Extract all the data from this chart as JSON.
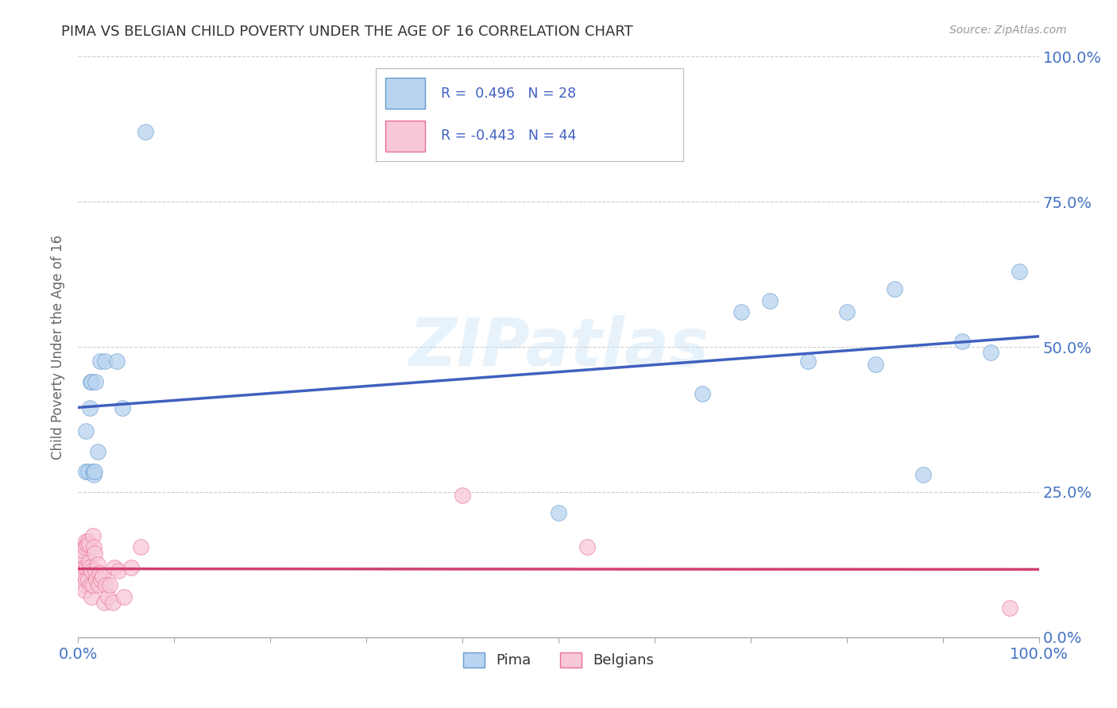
{
  "title": "PIMA VS BELGIAN CHILD POVERTY UNDER THE AGE OF 16 CORRELATION CHART",
  "source": "Source: ZipAtlas.com",
  "ylabel": "Child Poverty Under the Age of 16",
  "pima_R": 0.496,
  "pima_N": 28,
  "belgian_R": -0.443,
  "belgian_N": 44,
  "pima_fill_color": "#b8d4f0",
  "pima_edge_color": "#6699cc",
  "belgian_fill_color": "#f8c8d8",
  "belgian_edge_color": "#e87090",
  "pima_line_color": "#4060c0",
  "belgian_line_color": "#d04070",
  "background_color": "#ffffff",
  "grid_color": "#cccccc",
  "watermark": "ZIPatlas",
  "title_color": "#333333",
  "tick_color": "#4472c4",
  "ylabel_color": "#666666",
  "pima_x": [
    0.008,
    0.008,
    0.01,
    0.012,
    0.013,
    0.014,
    0.015,
    0.016,
    0.017,
    0.018,
    0.02,
    0.023,
    0.028,
    0.04,
    0.046,
    0.07,
    0.5,
    0.65,
    0.69,
    0.72,
    0.76,
    0.8,
    0.83,
    0.85,
    0.88,
    0.92,
    0.95,
    0.98
  ],
  "pima_y": [
    0.355,
    0.285,
    0.285,
    0.395,
    0.44,
    0.44,
    0.285,
    0.28,
    0.285,
    0.44,
    0.32,
    0.475,
    0.475,
    0.475,
    0.395,
    0.87,
    0.215,
    0.42,
    0.56,
    0.58,
    0.475,
    0.56,
    0.47,
    0.6,
    0.28,
    0.51,
    0.49,
    0.63
  ],
  "belgian_x": [
    0.003,
    0.004,
    0.004,
    0.005,
    0.006,
    0.006,
    0.007,
    0.007,
    0.008,
    0.008,
    0.009,
    0.009,
    0.01,
    0.01,
    0.011,
    0.011,
    0.012,
    0.013,
    0.014,
    0.014,
    0.015,
    0.015,
    0.016,
    0.017,
    0.018,
    0.019,
    0.02,
    0.021,
    0.022,
    0.024,
    0.025,
    0.027,
    0.029,
    0.031,
    0.033,
    0.036,
    0.038,
    0.042,
    0.048,
    0.055,
    0.065,
    0.4,
    0.53,
    0.97
  ],
  "belgian_y": [
    0.13,
    0.14,
    0.11,
    0.15,
    0.12,
    0.09,
    0.155,
    0.08,
    0.165,
    0.1,
    0.16,
    0.12,
    0.165,
    0.1,
    0.16,
    0.13,
    0.12,
    0.09,
    0.115,
    0.07,
    0.175,
    0.09,
    0.155,
    0.145,
    0.115,
    0.1,
    0.125,
    0.09,
    0.11,
    0.1,
    0.105,
    0.06,
    0.09,
    0.07,
    0.09,
    0.06,
    0.12,
    0.115,
    0.07,
    0.12,
    0.155,
    0.245,
    0.155,
    0.05
  ],
  "ytick_positions": [
    0.0,
    0.25,
    0.5,
    0.75,
    1.0
  ],
  "ytick_labels": [
    "0.0%",
    "25.0%",
    "50.0%",
    "75.0%",
    "100.0%"
  ],
  "xtick_positions": [
    0.0,
    0.1,
    0.2,
    0.3,
    0.4,
    0.5,
    0.6,
    0.7,
    0.8,
    0.9,
    1.0
  ],
  "xtick_labels": [
    "0.0%",
    "",
    "",
    "",
    "",
    "",
    "",
    "",
    "",
    "",
    "100.0%"
  ]
}
